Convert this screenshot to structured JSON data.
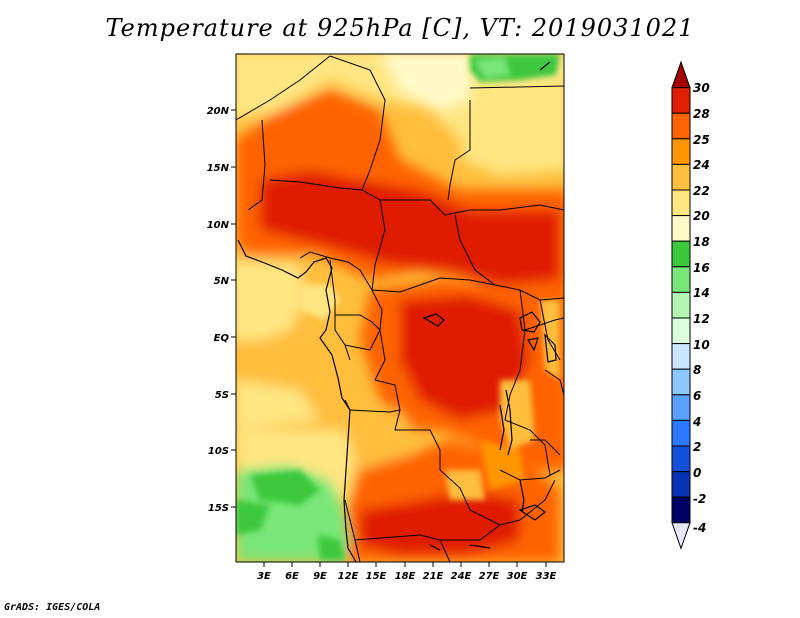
{
  "title": "Temperature at 925hPa [C], VT: 2019031021",
  "credit": "GrADS: IGES/COLA",
  "map": {
    "lat_ticks": [
      "20N",
      "15N",
      "10N",
      "5N",
      "EQ",
      "5S",
      "10S",
      "15S"
    ],
    "lon_ticks": [
      "3E",
      "6E",
      "9E",
      "12E",
      "15E",
      "18E",
      "21E",
      "24E",
      "27E",
      "30E",
      "33E"
    ]
  },
  "colorbar": {
    "levels": [
      "30",
      "28",
      "25",
      "24",
      "22",
      "20",
      "18",
      "16",
      "14",
      "12",
      "10",
      "8",
      "6",
      "4",
      "2",
      "0",
      "-2",
      "-4"
    ],
    "colors": [
      "#a50000",
      "#e01e00",
      "#ff6400",
      "#ff9600",
      "#ffbe3c",
      "#ffe682",
      "#fffac8",
      "#3cc83c",
      "#78e678",
      "#b4f5b4",
      "#dcffdc",
      "#c8e6ff",
      "#8cc8ff",
      "#5aa0ff",
      "#2c78ff",
      "#1450dc",
      "#0a32b4",
      "#000064",
      "#e6e6ff"
    ]
  }
}
